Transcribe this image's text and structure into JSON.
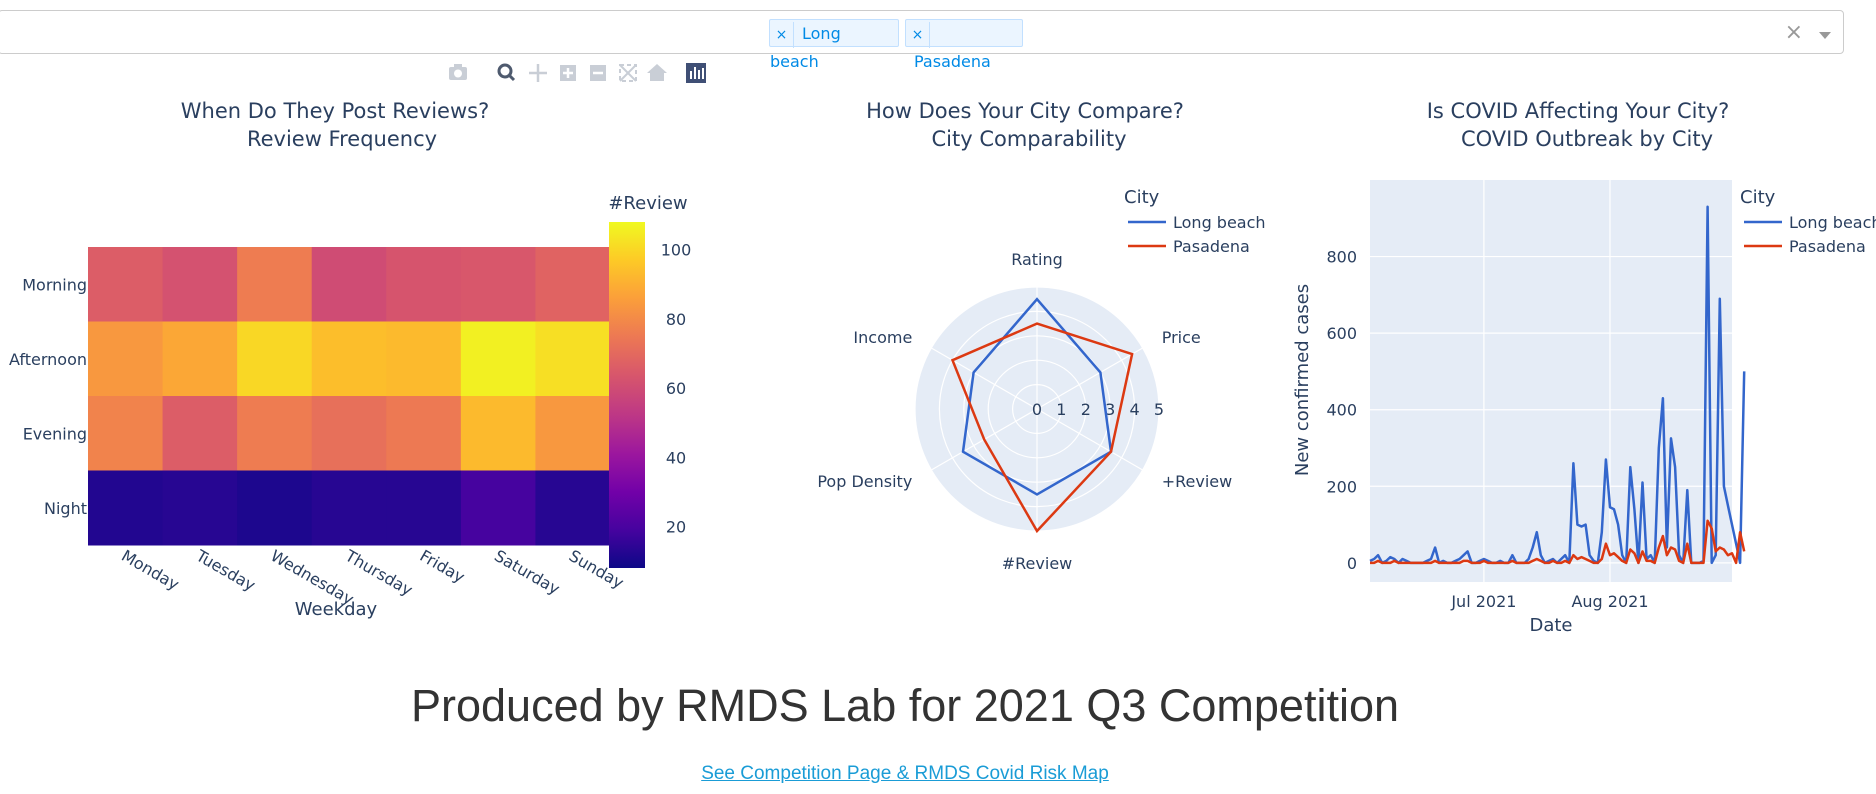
{
  "dropdown": {
    "selected": [
      {
        "label": "Long beach",
        "remove": "×"
      },
      {
        "label": "Pasadena",
        "remove": "×"
      }
    ],
    "clear": "×"
  },
  "modebar": {
    "icons": [
      "camera-icon",
      "zoom-icon",
      "pan-icon",
      "zoom-in-icon",
      "zoom-out-icon",
      "autoscale-icon",
      "home-icon",
      "plotly-logo-icon"
    ]
  },
  "colors": {
    "long_beach": "#3366cc",
    "pasadena": "#dc3912",
    "plot_bg": "#e5ecf6",
    "text": "#2a3f5f",
    "link": "#1a9cd6"
  },
  "chart_data": [
    {
      "type": "heatmap",
      "title": [
        "When Do They Post Reviews?",
        "Review Frequency"
      ],
      "xlabel": "Weekday",
      "ylabel": "",
      "x": [
        "Monday",
        "Tuesday",
        "Wednesday",
        "Thursday",
        "Friday",
        "Saturday",
        "Sunday"
      ],
      "y": [
        "Morning",
        "Afternoon",
        "Evening",
        "Night"
      ],
      "z": [
        [
          66,
          62,
          76,
          60,
          63,
          64,
          68
        ],
        [
          84,
          88,
          100,
          94,
          93,
          106,
          102
        ],
        [
          78,
          66,
          76,
          72,
          75,
          93,
          84
        ],
        [
          12,
          13,
          11,
          13,
          13,
          19,
          13
        ]
      ],
      "colorbar": {
        "title": "#Review",
        "ticks": [
          20,
          40,
          60,
          80,
          100
        ],
        "range": [
          8,
          108
        ]
      },
      "colorscale": "plasma"
    },
    {
      "type": "radar",
      "title": [
        "How Does Your City Compare?",
        "City Comparability"
      ],
      "axes": [
        "Rating",
        "Price",
        "+Review",
        "#Review",
        "Pop Density",
        "Income"
      ],
      "radial_ticks": [
        "0",
        "1",
        "2",
        "3",
        "4",
        "5"
      ],
      "radial_range": [
        0,
        5
      ],
      "legend_title": "City",
      "series": [
        {
          "name": "Long beach",
          "values": [
            4.5,
            3.0,
            3.5,
            3.5,
            3.5,
            3.0
          ]
        },
        {
          "name": "Pasadena",
          "values": [
            3.5,
            4.5,
            3.5,
            5.0,
            2.5,
            4.0
          ]
        }
      ]
    },
    {
      "type": "line",
      "title": [
        "Is COVID Affecting Your City?",
        "COVID Outbreak by City"
      ],
      "xlabel": "Date",
      "ylabel": "New confirmed cases",
      "x_tick_labels": [
        "Jul 2021",
        "Aug 2021"
      ],
      "x_range": [
        "2021-06-03",
        "2021-08-31"
      ],
      "ylim": [
        -50,
        1000
      ],
      "yticks": [
        0,
        200,
        400,
        600,
        800
      ],
      "legend_title": "City",
      "dates_start": "2021-06-03",
      "series": [
        {
          "name": "Long beach",
          "values": [
            5,
            10,
            20,
            0,
            5,
            15,
            10,
            0,
            10,
            5,
            0,
            0,
            0,
            0,
            5,
            10,
            40,
            0,
            5,
            0,
            0,
            5,
            10,
            20,
            30,
            0,
            0,
            5,
            10,
            5,
            0,
            0,
            5,
            0,
            0,
            20,
            0,
            0,
            0,
            10,
            40,
            80,
            20,
            0,
            5,
            10,
            0,
            10,
            20,
            0,
            260,
            100,
            95,
            100,
            20,
            5,
            0,
            80,
            270,
            145,
            140,
            100,
            20,
            0,
            250,
            140,
            0,
            210,
            10,
            20,
            0,
            300,
            430,
            40,
            325,
            250,
            20,
            0,
            190,
            0,
            0,
            0,
            5,
            930,
            0,
            20,
            690,
            200,
            150,
            100,
            50,
            0,
            500
          ]
        },
        {
          "name": "Pasadena",
          "values": [
            0,
            0,
            5,
            0,
            0,
            0,
            5,
            0,
            0,
            0,
            0,
            0,
            0,
            0,
            0,
            0,
            5,
            0,
            0,
            0,
            0,
            0,
            0,
            5,
            5,
            0,
            0,
            0,
            5,
            0,
            0,
            0,
            0,
            0,
            0,
            5,
            0,
            0,
            0,
            0,
            5,
            10,
            5,
            0,
            0,
            5,
            0,
            0,
            5,
            0,
            20,
            10,
            15,
            10,
            5,
            0,
            0,
            10,
            50,
            20,
            25,
            15,
            5,
            0,
            35,
            25,
            0,
            30,
            5,
            5,
            0,
            40,
            70,
            20,
            40,
            35,
            5,
            0,
            50,
            0,
            0,
            0,
            0,
            110,
            90,
            30,
            40,
            35,
            20,
            25,
            0,
            80,
            30
          ]
        }
      ]
    }
  ],
  "footer": {
    "title": "Produced by RMDS Lab for 2021 Q3 Competition",
    "link": "See Competition Page & RMDS Covid Risk Map"
  }
}
